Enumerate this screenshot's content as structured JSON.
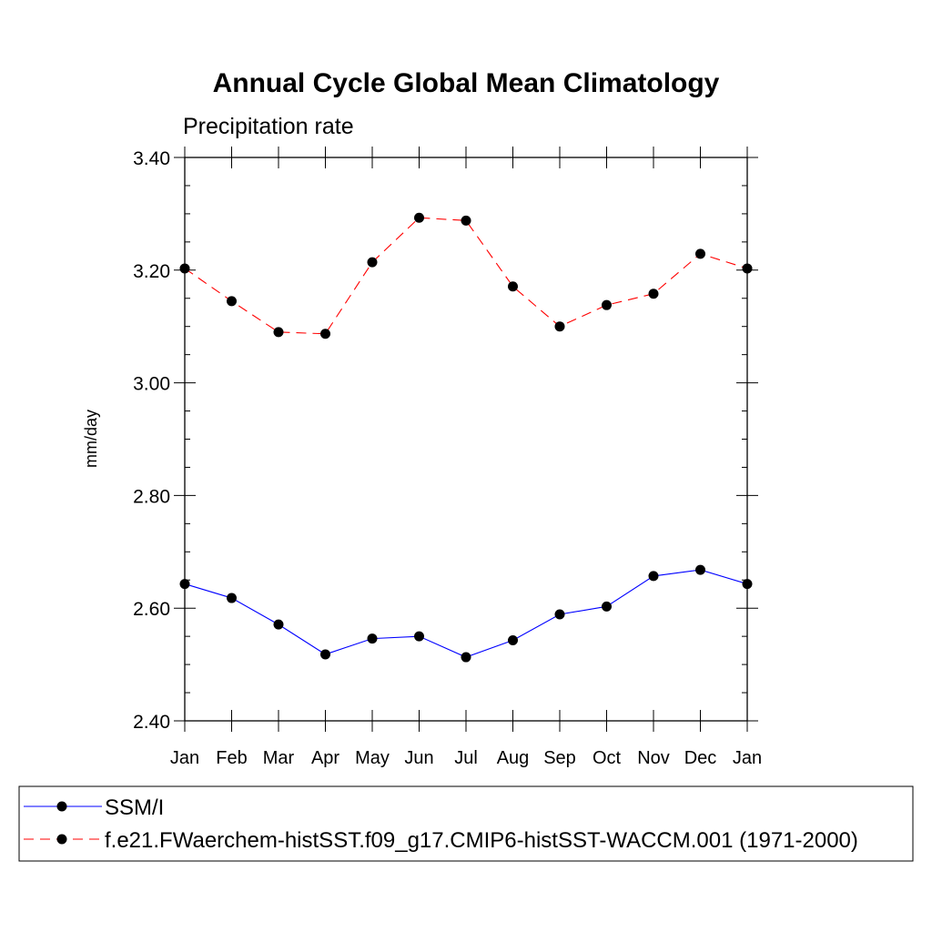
{
  "chart_data": {
    "type": "line",
    "title": "Annual Cycle Global Mean Climatology",
    "subtitle": "Precipitation rate",
    "ylabel": "mm/day",
    "xlabel": "",
    "ylim": [
      2.4,
      3.4
    ],
    "yticks": [
      "2.40",
      "2.60",
      "2.80",
      "3.00",
      "3.20",
      "3.40"
    ],
    "ytick_values": [
      2.4,
      2.6,
      2.8,
      3.0,
      3.2,
      3.4
    ],
    "categories": [
      "Jan",
      "Feb",
      "Mar",
      "Apr",
      "May",
      "Jun",
      "Jul",
      "Aug",
      "Sep",
      "Oct",
      "Nov",
      "Dec",
      "Jan"
    ],
    "series": [
      {
        "name": "SSM/I",
        "color": "#0000ff",
        "dash": "solid",
        "values": [
          2.643,
          2.618,
          2.571,
          2.518,
          2.546,
          2.55,
          2.513,
          2.543,
          2.589,
          2.603,
          2.657,
          2.668,
          2.643
        ]
      },
      {
        "name": "f.e21.FWaerchem-histSST.f09_g17.CMIP6-histSST-WACCM.001 (1971-2000)",
        "color": "#ff0000",
        "dash": "dashed",
        "values": [
          3.203,
          3.145,
          3.09,
          3.087,
          3.214,
          3.293,
          3.288,
          3.171,
          3.1,
          3.138,
          3.158,
          3.229,
          3.203
        ]
      }
    ],
    "legend": "bottom"
  }
}
